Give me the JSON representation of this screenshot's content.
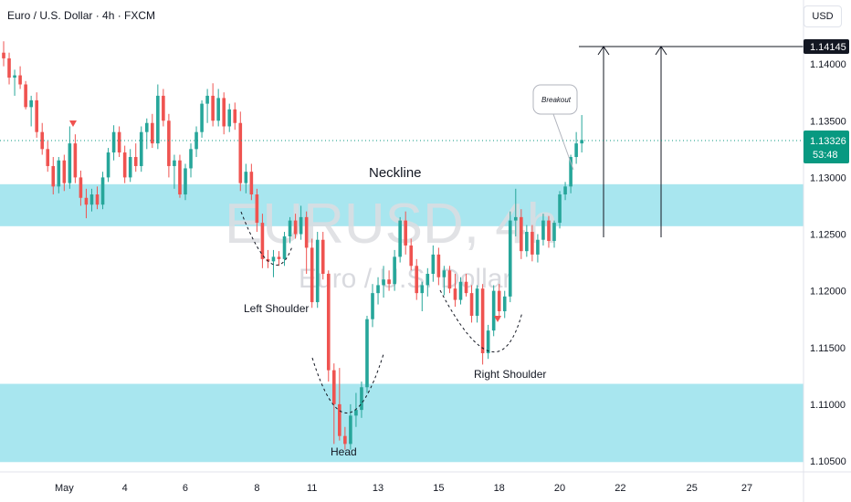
{
  "header": {
    "title": "Euro / U.S. Dollar · 4h · FXCM",
    "currency": "USD"
  },
  "watermark": {
    "symbol": "EURUSD, 4h",
    "name": "Euro / U.S. Dollar"
  },
  "colors": {
    "up": "#26a69a",
    "down": "#ef5350",
    "zone": "#a8e6ef",
    "accent": "#089981"
  },
  "chart_data": {
    "type": "candlestick",
    "y_ticks": [
      "1.14000",
      "1.13500",
      "1.13000",
      "1.12500",
      "1.12000",
      "1.11500",
      "1.11000",
      "1.10500"
    ],
    "x_ticks": [
      "May",
      "4",
      "6",
      "8",
      "11",
      "13",
      "15",
      "18",
      "20",
      "22",
      "25",
      "27"
    ],
    "price_tags": {
      "target": "1.14145",
      "current": "1.13326",
      "countdown": "53:48"
    },
    "ylim": [
      1.1046,
      1.145
    ],
    "zones": [
      {
        "top": 1.1294,
        "bottom": 1.1257
      },
      {
        "top": 1.1118,
        "bottom": 1.1049
      }
    ],
    "annotations": {
      "neckline": "Neckline",
      "left_shoulder": "Left Shoulder",
      "head": "Head",
      "right_shoulder": "Right Shoulder",
      "breakout": "Breakout"
    },
    "candles": [
      [
        1.141,
        1.142,
        1.1398,
        1.1405
      ],
      [
        1.1405,
        1.141,
        1.1382,
        1.1388
      ],
      [
        1.1388,
        1.1395,
        1.1372,
        1.139
      ],
      [
        1.139,
        1.1398,
        1.1378,
        1.1382
      ],
      [
        1.1382,
        1.1385,
        1.136,
        1.1362
      ],
      [
        1.1362,
        1.1372,
        1.1345,
        1.1368
      ],
      [
        1.1368,
        1.1375,
        1.1335,
        1.134
      ],
      [
        1.134,
        1.1348,
        1.132,
        1.1325
      ],
      [
        1.1325,
        1.1332,
        1.1305,
        1.131
      ],
      [
        1.131,
        1.1318,
        1.1285,
        1.1292
      ],
      [
        1.1292,
        1.1318,
        1.1286,
        1.1315
      ],
      [
        1.1315,
        1.132,
        1.1288,
        1.1295
      ],
      [
        1.1295,
        1.1345,
        1.129,
        1.133
      ],
      [
        1.133,
        1.1338,
        1.1295,
        1.13
      ],
      [
        1.13,
        1.1306,
        1.1275,
        1.1282
      ],
      [
        1.1282,
        1.129,
        1.1264,
        1.1276
      ],
      [
        1.1276,
        1.129,
        1.127,
        1.1285
      ],
      [
        1.1285,
        1.1292,
        1.1272,
        1.1276
      ],
      [
        1.1276,
        1.1305,
        1.1272,
        1.13
      ],
      [
        1.13,
        1.1326,
        1.1296,
        1.1322
      ],
      [
        1.1322,
        1.1346,
        1.1315,
        1.134
      ],
      [
        1.134,
        1.1345,
        1.1318,
        1.1322
      ],
      [
        1.1322,
        1.1328,
        1.1295,
        1.13
      ],
      [
        1.13,
        1.1325,
        1.1296,
        1.1318
      ],
      [
        1.1318,
        1.133,
        1.1305,
        1.131
      ],
      [
        1.131,
        1.1345,
        1.1305,
        1.134
      ],
      [
        1.134,
        1.1352,
        1.1325,
        1.1348
      ],
      [
        1.1348,
        1.1356,
        1.1326,
        1.133
      ],
      [
        1.133,
        1.1382,
        1.1325,
        1.1372
      ],
      [
        1.1372,
        1.1378,
        1.1345,
        1.135
      ],
      [
        1.135,
        1.1356,
        1.13,
        1.131
      ],
      [
        1.131,
        1.132,
        1.129,
        1.1315
      ],
      [
        1.1315,
        1.132,
        1.1282,
        1.1285
      ],
      [
        1.1285,
        1.1312,
        1.128,
        1.1308
      ],
      [
        1.1308,
        1.133,
        1.13,
        1.1325
      ],
      [
        1.1325,
        1.1345,
        1.1318,
        1.134
      ],
      [
        1.134,
        1.1368,
        1.1335,
        1.1365
      ],
      [
        1.1365,
        1.1378,
        1.1348,
        1.1372
      ],
      [
        1.1372,
        1.1383,
        1.1345,
        1.135
      ],
      [
        1.135,
        1.1378,
        1.1345,
        1.137
      ],
      [
        1.137,
        1.1375,
        1.1338,
        1.1345
      ],
      [
        1.1345,
        1.1365,
        1.134,
        1.136
      ],
      [
        1.136,
        1.1366,
        1.1342,
        1.1348
      ],
      [
        1.1348,
        1.1358,
        1.1288,
        1.1295
      ],
      [
        1.1295,
        1.1312,
        1.1286,
        1.1305
      ],
      [
        1.1305,
        1.1312,
        1.128,
        1.1285
      ],
      [
        1.1285,
        1.129,
        1.1252,
        1.126
      ],
      [
        1.126,
        1.1268,
        1.122,
        1.1228
      ],
      [
        1.1228,
        1.1236,
        1.122,
        1.1226
      ],
      [
        1.1226,
        1.1236,
        1.1212,
        1.123
      ],
      [
        1.123,
        1.1235,
        1.1222,
        1.1228
      ],
      [
        1.1228,
        1.1252,
        1.1222,
        1.1248
      ],
      [
        1.1248,
        1.1265,
        1.1242,
        1.1262
      ],
      [
        1.1262,
        1.1268,
        1.1246,
        1.125
      ],
      [
        1.125,
        1.1275,
        1.1245,
        1.1265
      ],
      [
        1.1265,
        1.127,
        1.1215,
        1.1238
      ],
      [
        1.1238,
        1.1246,
        1.1185,
        1.119
      ],
      [
        1.119,
        1.1252,
        1.1185,
        1.1245
      ],
      [
        1.1245,
        1.1252,
        1.121,
        1.1215
      ],
      [
        1.1215,
        1.1218,
        1.112,
        1.113
      ],
      [
        1.113,
        1.1136,
        1.1065,
        1.11
      ],
      [
        1.11,
        1.1132,
        1.1068,
        1.1072
      ],
      [
        1.1072,
        1.108,
        1.106,
        1.1065
      ],
      [
        1.1065,
        1.11,
        1.106,
        1.109
      ],
      [
        1.109,
        1.111,
        1.108,
        1.1095
      ],
      [
        1.1095,
        1.112,
        1.1088,
        1.1115
      ],
      [
        1.1115,
        1.1178,
        1.111,
        1.1175
      ],
      [
        1.1175,
        1.1206,
        1.1168,
        1.1198
      ],
      [
        1.1198,
        1.1212,
        1.1188,
        1.1205
      ],
      [
        1.1205,
        1.1222,
        1.1194,
        1.121
      ],
      [
        1.121,
        1.1218,
        1.12,
        1.1206
      ],
      [
        1.1206,
        1.1236,
        1.12,
        1.123
      ],
      [
        1.123,
        1.1265,
        1.1225,
        1.1262
      ],
      [
        1.1262,
        1.127,
        1.1232,
        1.124
      ],
      [
        1.124,
        1.1246,
        1.1218,
        1.1222
      ],
      [
        1.1222,
        1.1228,
        1.1192,
        1.1198
      ],
      [
        1.1198,
        1.1208,
        1.1182,
        1.1205
      ],
      [
        1.1205,
        1.122,
        1.1195,
        1.1215
      ],
      [
        1.1215,
        1.124,
        1.1208,
        1.1232
      ],
      [
        1.1232,
        1.1238,
        1.1205,
        1.1212
      ],
      [
        1.1212,
        1.1222,
        1.1196,
        1.1218
      ],
      [
        1.1218,
        1.1222,
        1.1198,
        1.1202
      ],
      [
        1.1202,
        1.1215,
        1.1186,
        1.1192
      ],
      [
        1.1192,
        1.1212,
        1.1188,
        1.1208
      ],
      [
        1.1208,
        1.1215,
        1.1195,
        1.1198
      ],
      [
        1.1198,
        1.1205,
        1.1172,
        1.1178
      ],
      [
        1.1178,
        1.1205,
        1.1172,
        1.1202
      ],
      [
        1.1202,
        1.1206,
        1.1135,
        1.1145
      ],
      [
        1.1145,
        1.117,
        1.114,
        1.1165
      ],
      [
        1.1165,
        1.1205,
        1.116,
        1.12
      ],
      [
        1.12,
        1.1206,
        1.1175,
        1.1182
      ],
      [
        1.1182,
        1.12,
        1.1176,
        1.1195
      ],
      [
        1.1195,
        1.127,
        1.119,
        1.1262
      ],
      [
        1.1262,
        1.129,
        1.1248,
        1.1265
      ],
      [
        1.1265,
        1.1272,
        1.1228,
        1.1235
      ],
      [
        1.1235,
        1.1258,
        1.123,
        1.1252
      ],
      [
        1.1252,
        1.1258,
        1.1226,
        1.1232
      ],
      [
        1.1232,
        1.125,
        1.1225,
        1.1245
      ],
      [
        1.1245,
        1.1268,
        1.124,
        1.1262
      ],
      [
        1.1262,
        1.1266,
        1.1238,
        1.1244
      ],
      [
        1.1244,
        1.1262,
        1.1238,
        1.126
      ],
      [
        1.126,
        1.1288,
        1.1255,
        1.1285
      ],
      [
        1.1285,
        1.1296,
        1.128,
        1.1292
      ],
      [
        1.1292,
        1.132,
        1.1286,
        1.1318
      ],
      [
        1.1318,
        1.134,
        1.1312,
        1.133
      ],
      [
        1.133,
        1.1355,
        1.1322,
        1.1333
      ]
    ]
  }
}
